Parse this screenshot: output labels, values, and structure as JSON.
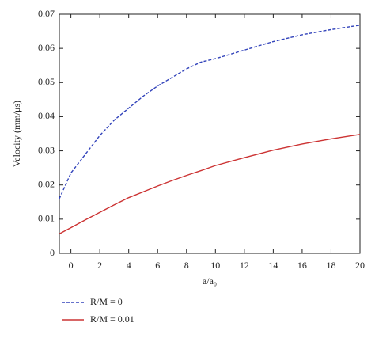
{
  "chart_data": {
    "type": "line",
    "x": [
      -0.8,
      0,
      1,
      2,
      3,
      4,
      5,
      6,
      7,
      8,
      9,
      10,
      12,
      14,
      16,
      18,
      20
    ],
    "series": [
      {
        "name": "R/M = 0",
        "color": "#3344bb",
        "dashed": true,
        "values": [
          0.016,
          0.0235,
          0.029,
          0.0345,
          0.039,
          0.0425,
          0.046,
          0.049,
          0.0515,
          0.054,
          0.056,
          0.057,
          0.0595,
          0.062,
          0.064,
          0.0655,
          0.0668
        ]
      },
      {
        "name": "R/M = 0.01",
        "color": "#cc3333",
        "dashed": false,
        "values": [
          0.0057,
          0.0075,
          0.0098,
          0.012,
          0.0142,
          0.0163,
          0.018,
          0.0197,
          0.0213,
          0.0228,
          0.0242,
          0.0257,
          0.028,
          0.0302,
          0.032,
          0.0335,
          0.0348
        ]
      }
    ],
    "xlabel": "a/a₀",
    "ylabel": "Velocity (mm/μs)",
    "xlim": [
      -0.8,
      20
    ],
    "ylim": [
      0,
      0.07
    ],
    "xticks": [
      0,
      2,
      4,
      6,
      8,
      10,
      12,
      14,
      16,
      18,
      20
    ],
    "yticks": [
      0,
      0.01,
      0.02,
      0.03,
      0.04,
      0.05,
      0.06,
      0.07
    ],
    "legend": "bottom-left"
  }
}
